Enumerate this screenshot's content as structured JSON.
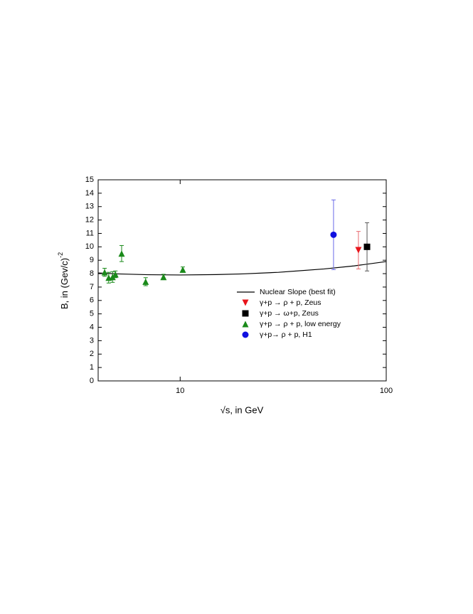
{
  "chart_data": {
    "type": "scatter",
    "x_label": "√s, in GeV",
    "y_label": "B, in (Gev/c)",
    "y_label_exponent": "-2",
    "xlim": [
      4,
      100
    ],
    "ylim": [
      0,
      15
    ],
    "xticks": [
      10,
      100
    ],
    "yticks": [
      0,
      1,
      2,
      3,
      4,
      5,
      6,
      7,
      8,
      9,
      10,
      11,
      12,
      13,
      14,
      15
    ],
    "x_scale": "log",
    "grid": false,
    "series": [
      {
        "name": "Nuclear Slope (best fit)",
        "style": "line",
        "color": "#000000",
        "x": [
          4,
          5,
          7,
          10,
          15,
          20,
          30,
          50,
          70,
          100
        ],
        "values": [
          8.05,
          7.98,
          7.92,
          7.9,
          7.93,
          7.98,
          8.1,
          8.35,
          8.58,
          8.9
        ]
      },
      {
        "name": "γ+p → ρ + p, Zeus",
        "style": "triangle-down",
        "color": "#e8141b",
        "error_color": "#e86a6e",
        "x": [
          73.3
        ],
        "values": [
          9.75
        ],
        "errors": [
          1.4
        ]
      },
      {
        "name": "γ+p → ω+p, Zeus",
        "style": "square",
        "color": "#000000",
        "error_color": "#555555",
        "x": [
          80.7
        ],
        "values": [
          10.0
        ],
        "errors": [
          1.8
        ]
      },
      {
        "name": "γ+p → ρ + p, low energy",
        "style": "triangle-up",
        "color": "#1a8a1a",
        "error_color": "#1a8a1a",
        "x": [
          4.3,
          4.5,
          4.7,
          4.85,
          5.2,
          6.8,
          8.3,
          10.3
        ],
        "values": [
          8.1,
          7.7,
          7.75,
          7.95,
          9.5,
          7.4,
          7.75,
          8.3
        ],
        "errors": [
          0.3,
          0.4,
          0.4,
          0.25,
          0.6,
          0.3,
          0.2,
          0.2
        ]
      },
      {
        "name": "γ+p→ ρ + p, H1",
        "style": "circle",
        "color": "#1010e0",
        "error_color": "#6a6ae8",
        "x": [
          55.5
        ],
        "values": [
          10.9
        ],
        "errors": [
          2.6
        ]
      }
    ]
  }
}
